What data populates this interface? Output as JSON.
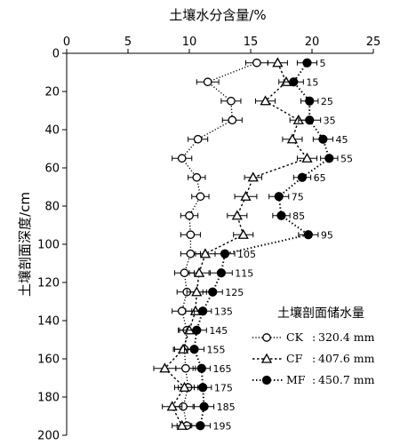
{
  "chart_data": {
    "type": "line",
    "title": "",
    "xlabel": "土壤水分含量/%",
    "ylabel": "土壤剖面深度/cm",
    "x_axis_position": "top",
    "xlim": [
      0,
      25
    ],
    "ylim": [
      0,
      200
    ],
    "y_inverted": true,
    "xticks": [
      "0",
      "5",
      "10",
      "15",
      "20",
      "25"
    ],
    "yticks": [
      "0",
      "20",
      "40",
      "60",
      "80",
      "100",
      "120",
      "140",
      "160",
      "180",
      "200"
    ],
    "depths": [
      5,
      15,
      25,
      35,
      45,
      55,
      65,
      75,
      85,
      95,
      105,
      115,
      125,
      135,
      145,
      155,
      165,
      175,
      185,
      195
    ],
    "depth_labels": [
      "5",
      "15",
      "25",
      "35",
      "45",
      "55",
      "65",
      "75",
      "85",
      "95",
      "105",
      "115",
      "125",
      "135",
      "145",
      "155",
      "165",
      "175",
      "185",
      "195"
    ],
    "legend_title": "土壤剖面储水量",
    "legend_position": "bottom-right",
    "series": [
      {
        "name": "CK",
        "legend_value": "320.4 mm",
        "marker": "circle-open",
        "values": [
          15.5,
          11.5,
          13.4,
          13.5,
          10.7,
          9.4,
          10.6,
          10.9,
          10.0,
          10.1,
          10.1,
          9.6,
          9.8,
          9.4,
          9.8,
          9.6,
          9.7,
          9.9,
          9.5,
          9.8
        ],
        "errors": [
          0.9,
          0.9,
          0.8,
          0.8,
          0.8,
          0.8,
          0.7,
          0.7,
          0.7,
          0.8,
          0.8,
          0.8,
          0.8,
          0.8,
          0.7,
          0.8,
          0.8,
          0.8,
          0.8,
          0.8
        ]
      },
      {
        "name": "CF",
        "legend_value": "407.6 mm",
        "marker": "triangle-open",
        "values": [
          17.2,
          17.9,
          16.2,
          18.9,
          18.4,
          19.6,
          15.2,
          14.6,
          13.9,
          14.4,
          11.3,
          10.8,
          10.6,
          10.5,
          10.0,
          9.5,
          8.0,
          9.6,
          8.6,
          9.4
        ],
        "errors": [
          0.8,
          0.6,
          0.8,
          0.7,
          0.8,
          0.8,
          0.7,
          0.9,
          0.8,
          0.8,
          0.8,
          0.8,
          0.8,
          0.8,
          0.8,
          0.8,
          0.9,
          0.8,
          0.8,
          0.8
        ]
      },
      {
        "name": "MF",
        "legend_value": "450.7 mm",
        "marker": "circle-filled",
        "values": [
          19.6,
          18.5,
          19.8,
          19.8,
          20.9,
          21.4,
          19.2,
          17.3,
          17.5,
          19.7,
          12.9,
          12.6,
          11.9,
          11.1,
          10.6,
          10.4,
          11.0,
          11.1,
          11.2,
          10.9
        ],
        "errors": [
          0.8,
          0.8,
          0.7,
          0.9,
          0.8,
          0.7,
          0.7,
          0.8,
          0.7,
          0.8,
          0.8,
          0.9,
          0.8,
          0.7,
          0.8,
          0.8,
          0.7,
          0.7,
          0.8,
          0.8
        ]
      }
    ]
  }
}
